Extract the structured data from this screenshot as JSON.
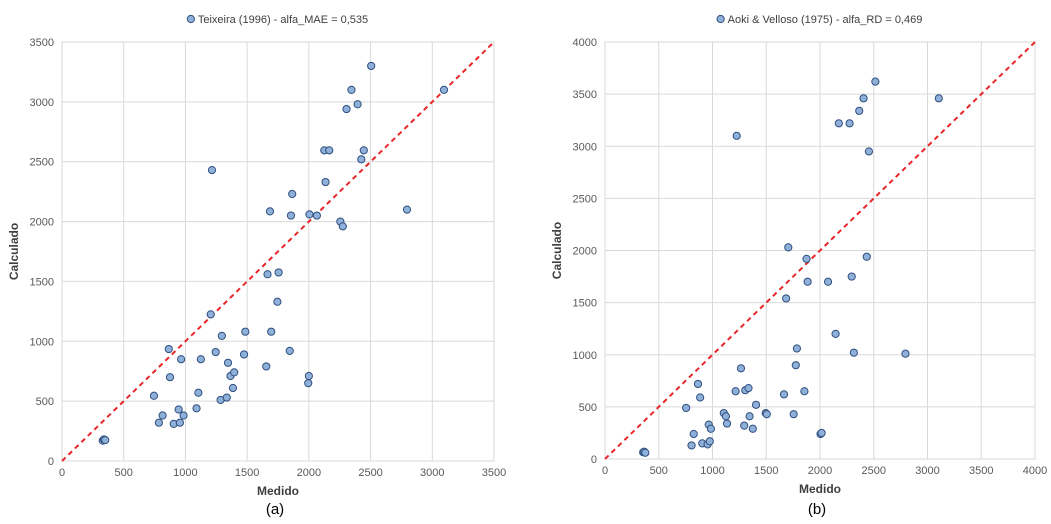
{
  "chart_data": [
    {
      "type": "scatter",
      "title": "",
      "xlabel": "Medido",
      "ylabel": "Calculado",
      "panel_label": "(a)",
      "xlim": [
        0,
        3500
      ],
      "ylim": [
        0,
        3500
      ],
      "xticks": [
        0,
        500,
        1000,
        1500,
        2000,
        2500,
        3000,
        3500
      ],
      "yticks": [
        0,
        500,
        1000,
        1500,
        2000,
        2500,
        3000,
        3500
      ],
      "grid": true,
      "legend_position": "top-center",
      "reference_line": {
        "from": [
          0,
          0
        ],
        "to": [
          3500,
          3500
        ],
        "style": "dashed",
        "color": "#e8262a"
      },
      "series": [
        {
          "name": "Teixeira (1996) - alfa_MAE = 0,535",
          "color": "#8fb0d8",
          "x": [
            330,
            340,
            350,
            745,
            785,
            815,
            865,
            875,
            905,
            945,
            955,
            965,
            985,
            1090,
            1105,
            1125,
            1205,
            1215,
            1245,
            1285,
            1295,
            1335,
            1345,
            1365,
            1385,
            1395,
            1475,
            1485,
            1655,
            1665,
            1685,
            1695,
            1745,
            1755,
            1845,
            1855,
            1865,
            1995,
            2000,
            2005,
            2065,
            2125,
            2135,
            2165,
            2255,
            2275,
            2305,
            2345,
            2395,
            2425,
            2445,
            2505,
            2795,
            3095
          ],
          "y": [
            170,
            180,
            175,
            545,
            320,
            380,
            935,
            700,
            310,
            430,
            320,
            850,
            380,
            440,
            570,
            850,
            1225,
            2430,
            910,
            510,
            1045,
            530,
            820,
            710,
            610,
            740,
            890,
            1080,
            790,
            1560,
            2085,
            1080,
            1330,
            1575,
            920,
            2050,
            2230,
            650,
            710,
            2060,
            2050,
            2595,
            2330,
            2595,
            2000,
            1960,
            2940,
            3100,
            2980,
            2520,
            2595,
            3300,
            2100,
            3100
          ]
        }
      ]
    },
    {
      "type": "scatter",
      "title": "",
      "xlabel": "Medido",
      "ylabel": "Calculado",
      "panel_label": "(b)",
      "xlim": [
        0,
        4000
      ],
      "ylim": [
        0,
        4000
      ],
      "xticks": [
        0,
        500,
        1000,
        1500,
        2000,
        2500,
        3000,
        3500,
        4000
      ],
      "yticks": [
        0,
        500,
        1000,
        1500,
        2000,
        2500,
        3000,
        3500,
        4000
      ],
      "grid": true,
      "legend_position": "top-center",
      "reference_line": {
        "from": [
          0,
          0
        ],
        "to": [
          4000,
          4000
        ],
        "style": "dashed",
        "color": "#e8262a"
      },
      "series": [
        {
          "name": "Aoki & Velloso (1975) - alfa_RD = 0,469",
          "color": "#8fb0d8",
          "x": [
            355,
            365,
            375,
            755,
            805,
            825,
            865,
            885,
            905,
            955,
            965,
            975,
            985,
            1105,
            1125,
            1135,
            1215,
            1225,
            1265,
            1295,
            1305,
            1335,
            1345,
            1375,
            1405,
            1495,
            1505,
            1665,
            1685,
            1705,
            1755,
            1775,
            1785,
            1855,
            1875,
            1885,
            2005,
            2015,
            2075,
            2145,
            2175,
            2275,
            2295,
            2315,
            2365,
            2405,
            2435,
            2455,
            2515,
            2795,
            3105
          ],
          "y": [
            65,
            70,
            60,
            490,
            130,
            240,
            720,
            590,
            150,
            140,
            330,
            170,
            290,
            440,
            410,
            340,
            650,
            3100,
            870,
            320,
            660,
            680,
            410,
            290,
            520,
            440,
            430,
            620,
            1540,
            2030,
            430,
            900,
            1060,
            650,
            1920,
            1700,
            240,
            250,
            1700,
            1200,
            3220,
            3220,
            1750,
            1020,
            3340,
            3460,
            1940,
            2950,
            3620,
            1010,
            3460
          ]
        }
      ]
    }
  ]
}
